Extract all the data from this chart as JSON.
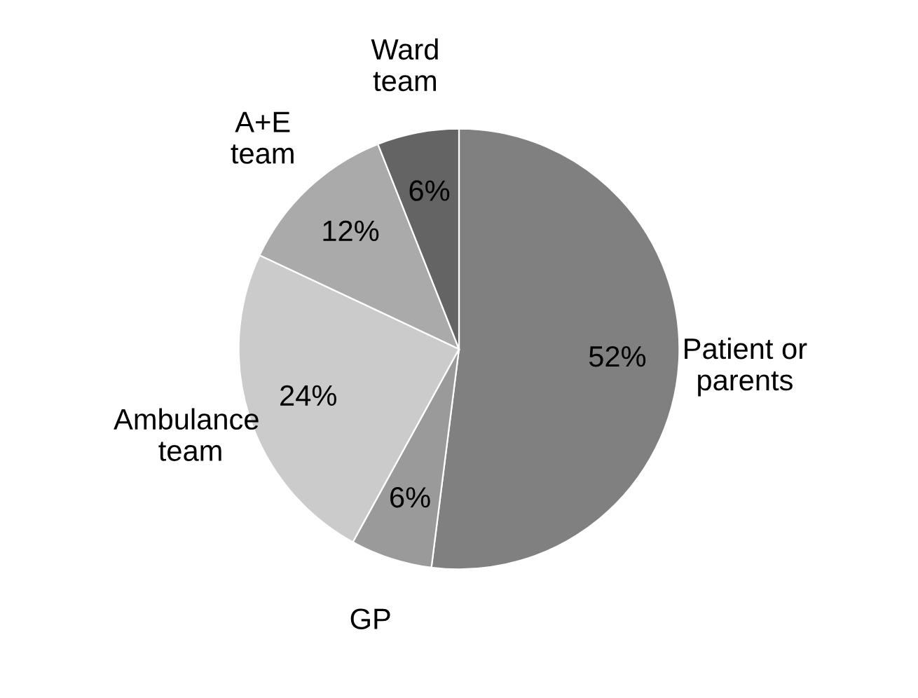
{
  "chart_data": {
    "type": "pie",
    "categories": [
      "Patient or\nparents",
      "GP",
      "Ambulance\n team",
      "A+E\nteam",
      "Ward\nteam"
    ],
    "values": [
      52,
      6,
      24,
      12,
      6
    ],
    "colors": [
      "#808080",
      "#9a9a9a",
      "#cbcbcb",
      "#aaaaaa",
      "#646464"
    ],
    "value_labels": [
      "52%",
      "6%",
      "24%",
      "12%",
      "6%"
    ],
    "legend": false
  }
}
